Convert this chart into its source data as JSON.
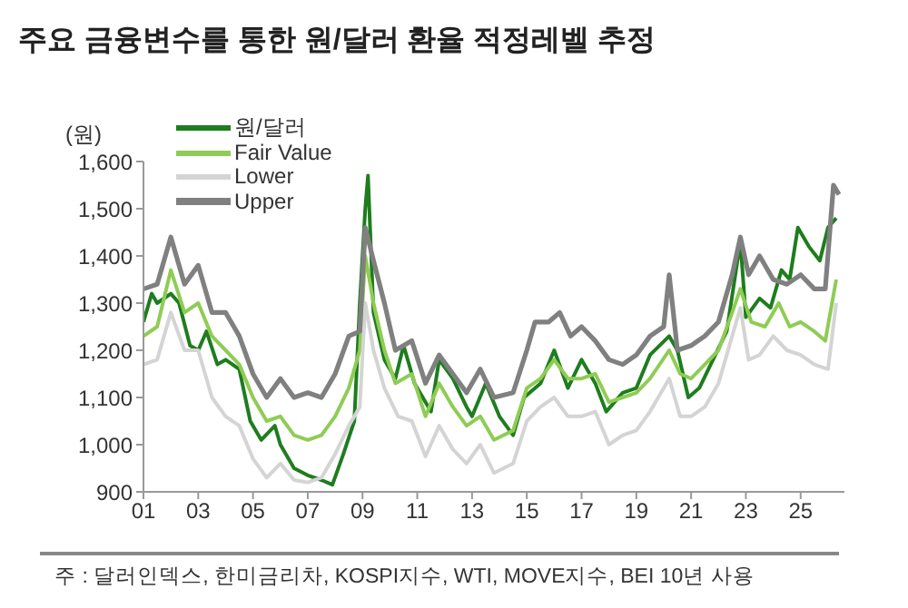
{
  "chart_data": {
    "type": "line",
    "title": "주요 금융변수를 통한 원/달러 환율 적정레벨 추정",
    "ylabel": "(원)",
    "xlim": [
      2001,
      2026.6
    ],
    "xticks": [
      {
        "value": 2001,
        "label": "01"
      },
      {
        "value": 2003,
        "label": "03"
      },
      {
        "value": 2005,
        "label": "05"
      },
      {
        "value": 2007,
        "label": "07"
      },
      {
        "value": 2009,
        "label": "09"
      },
      {
        "value": 2011,
        "label": "11"
      },
      {
        "value": 2013,
        "label": "13"
      },
      {
        "value": 2015,
        "label": "15"
      },
      {
        "value": 2017,
        "label": "17"
      },
      {
        "value": 2019,
        "label": "19"
      },
      {
        "value": 2021,
        "label": "21"
      },
      {
        "value": 2023,
        "label": "23"
      },
      {
        "value": 2025,
        "label": "25"
      }
    ],
    "ylim": [
      900,
      1600
    ],
    "yticks": [
      {
        "value": 900,
        "label": "900"
      },
      {
        "value": 1000,
        "label": "1,000"
      },
      {
        "value": 1100,
        "label": "1,100"
      },
      {
        "value": 1200,
        "label": "1,200"
      },
      {
        "value": 1300,
        "label": "1,300"
      },
      {
        "value": 1400,
        "label": "1,400"
      },
      {
        "value": 1500,
        "label": "1,500"
      },
      {
        "value": 1600,
        "label": "1,600"
      }
    ],
    "grid": false,
    "legend": "top left",
    "marker": "none",
    "line_style": "solid",
    "series": [
      {
        "name": "원/달러",
        "color": "#1e7d1e",
        "x": [
          2001.0,
          2001.3,
          2001.5,
          2002.0,
          2002.3,
          2002.7,
          2003.0,
          2003.3,
          2003.7,
          2004.0,
          2004.5,
          2004.9,
          2005.3,
          2005.8,
          2006.0,
          2006.5,
          2007.0,
          2007.5,
          2007.9,
          2008.3,
          2008.7,
          2008.9,
          2009.1,
          2009.2,
          2009.4,
          2009.8,
          2010.2,
          2010.5,
          2010.9,
          2011.5,
          2011.8,
          2012.3,
          2012.8,
          2013.0,
          2013.5,
          2014.0,
          2014.5,
          2014.9,
          2015.5,
          2016.0,
          2016.5,
          2017.0,
          2017.5,
          2017.9,
          2018.5,
          2019.0,
          2019.5,
          2020.2,
          2020.5,
          2020.9,
          2021.3,
          2021.8,
          2022.3,
          2022.8,
          2023.0,
          2023.5,
          2023.9,
          2024.3,
          2024.6,
          2024.9,
          2025.3,
          2025.7,
          2026.0,
          2026.3
        ],
        "values": [
          1260,
          1320,
          1300,
          1320,
          1300,
          1210,
          1200,
          1240,
          1170,
          1180,
          1160,
          1050,
          1010,
          1040,
          1000,
          950,
          935,
          925,
          915,
          980,
          1050,
          1300,
          1500,
          1570,
          1280,
          1180,
          1140,
          1210,
          1130,
          1070,
          1180,
          1140,
          1080,
          1060,
          1130,
          1060,
          1020,
          1100,
          1130,
          1200,
          1120,
          1180,
          1130,
          1070,
          1110,
          1120,
          1190,
          1230,
          1200,
          1100,
          1120,
          1180,
          1240,
          1430,
          1270,
          1310,
          1290,
          1370,
          1350,
          1460,
          1420,
          1390,
          1460,
          1480
        ]
      },
      {
        "name": "Fair Value",
        "color": "#8fcc55",
        "x": [
          2001.0,
          2001.5,
          2002.0,
          2002.5,
          2003.0,
          2003.5,
          2004.0,
          2004.5,
          2005.0,
          2005.5,
          2006.0,
          2006.5,
          2007.0,
          2007.5,
          2008.0,
          2008.5,
          2008.9,
          2009.1,
          2009.4,
          2009.8,
          2010.2,
          2010.8,
          2011.3,
          2011.8,
          2012.3,
          2012.8,
          2013.3,
          2013.8,
          2014.5,
          2015.0,
          2015.5,
          2016.0,
          2016.5,
          2017.0,
          2017.5,
          2018.0,
          2018.5,
          2019.0,
          2019.5,
          2020.2,
          2020.6,
          2021.0,
          2021.5,
          2022.0,
          2022.5,
          2022.8,
          2023.2,
          2023.7,
          2024.2,
          2024.6,
          2025.0,
          2025.5,
          2025.9,
          2026.3
        ],
        "values": [
          1230,
          1250,
          1370,
          1280,
          1300,
          1230,
          1200,
          1170,
          1100,
          1050,
          1060,
          1020,
          1010,
          1020,
          1060,
          1120,
          1200,
          1400,
          1300,
          1200,
          1130,
          1150,
          1060,
          1130,
          1080,
          1040,
          1060,
          1010,
          1030,
          1120,
          1140,
          1180,
          1140,
          1140,
          1150,
          1090,
          1100,
          1110,
          1140,
          1200,
          1150,
          1140,
          1170,
          1200,
          1280,
          1330,
          1260,
          1250,
          1300,
          1250,
          1260,
          1240,
          1220,
          1350
        ]
      },
      {
        "name": "Lower",
        "color": "#d4d4d4",
        "x": [
          2001.0,
          2001.5,
          2002.0,
          2002.5,
          2003.0,
          2003.5,
          2004.0,
          2004.5,
          2005.0,
          2005.5,
          2006.0,
          2006.5,
          2007.0,
          2007.5,
          2008.0,
          2008.5,
          2008.9,
          2009.1,
          2009.4,
          2009.8,
          2010.3,
          2010.8,
          2011.3,
          2011.8,
          2012.3,
          2012.8,
          2013.3,
          2013.8,
          2014.5,
          2015.0,
          2015.5,
          2016.0,
          2016.5,
          2017.0,
          2017.5,
          2018.0,
          2018.5,
          2019.0,
          2019.5,
          2020.2,
          2020.6,
          2021.0,
          2021.5,
          2022.0,
          2022.5,
          2022.8,
          2023.1,
          2023.5,
          2024.0,
          2024.5,
          2025.0,
          2025.5,
          2026.0,
          2026.3
        ],
        "values": [
          1170,
          1180,
          1280,
          1200,
          1200,
          1100,
          1060,
          1040,
          970,
          930,
          960,
          925,
          920,
          930,
          980,
          1040,
          1080,
          1300,
          1200,
          1120,
          1060,
          1050,
          975,
          1040,
          990,
          960,
          1000,
          940,
          960,
          1050,
          1080,
          1100,
          1060,
          1060,
          1070,
          1000,
          1020,
          1030,
          1070,
          1140,
          1060,
          1060,
          1080,
          1130,
          1230,
          1290,
          1180,
          1190,
          1230,
          1200,
          1190,
          1170,
          1160,
          1300
        ]
      },
      {
        "name": "Upper",
        "color": "#808080",
        "x": [
          2001.0,
          2001.5,
          2002.0,
          2002.5,
          2003.0,
          2003.5,
          2004.0,
          2004.5,
          2005.0,
          2005.5,
          2006.0,
          2006.5,
          2007.0,
          2007.5,
          2008.0,
          2008.5,
          2008.9,
          2009.1,
          2009.4,
          2009.8,
          2010.2,
          2010.8,
          2011.3,
          2011.8,
          2012.3,
          2012.8,
          2013.3,
          2013.8,
          2014.5,
          2015.0,
          2015.3,
          2015.8,
          2016.2,
          2016.6,
          2017.0,
          2017.5,
          2018.0,
          2018.5,
          2019.0,
          2019.5,
          2020.0,
          2020.2,
          2020.5,
          2021.0,
          2021.5,
          2022.0,
          2022.5,
          2022.8,
          2023.1,
          2023.5,
          2024.0,
          2024.5,
          2025.0,
          2025.5,
          2025.9,
          2026.2,
          2026.4
        ],
        "values": [
          1330,
          1340,
          1440,
          1340,
          1380,
          1280,
          1280,
          1230,
          1150,
          1100,
          1140,
          1100,
          1110,
          1100,
          1150,
          1230,
          1240,
          1460,
          1390,
          1300,
          1200,
          1220,
          1130,
          1190,
          1150,
          1110,
          1160,
          1100,
          1110,
          1200,
          1260,
          1260,
          1280,
          1230,
          1250,
          1220,
          1180,
          1170,
          1190,
          1230,
          1250,
          1360,
          1200,
          1210,
          1230,
          1260,
          1360,
          1440,
          1360,
          1400,
          1350,
          1340,
          1360,
          1330,
          1330,
          1550,
          1530
        ]
      }
    ],
    "annotations": [
      "주 : 달러인덱스, 한미금리차, KOSPI지수, WTI, MOVE지수, BEI 10년 사용"
    ]
  }
}
